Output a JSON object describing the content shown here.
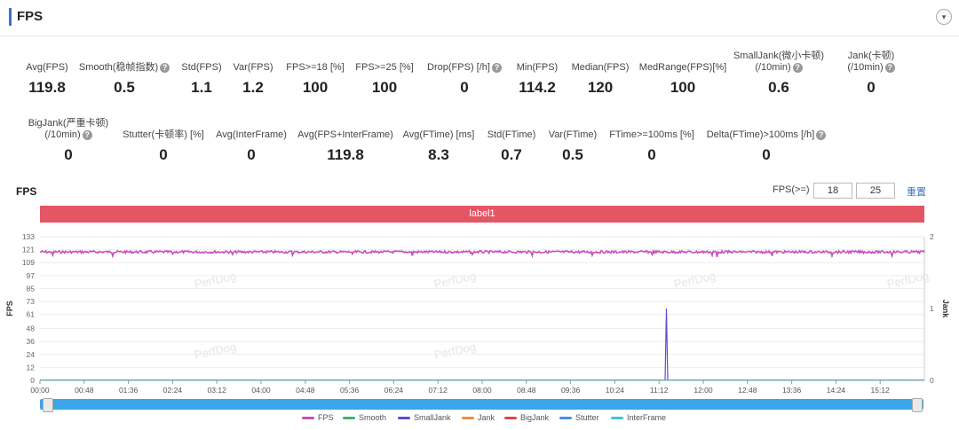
{
  "header": {
    "title": "FPS",
    "collapse_icon": "▾"
  },
  "stats_row1": [
    {
      "label": "Avg(FPS)",
      "value": "119.8",
      "help": false
    },
    {
      "label": "Smooth(稳帧指数)",
      "value": "0.5",
      "help": true
    },
    {
      "label": "Std(FPS)",
      "value": "1.1",
      "help": false
    },
    {
      "label": "Var(FPS)",
      "value": "1.2",
      "help": false
    },
    {
      "label": "FPS>=18 [%]",
      "value": "100",
      "help": false
    },
    {
      "label": "FPS>=25 [%]",
      "value": "100",
      "help": false
    },
    {
      "label": "Drop(FPS) [/h]",
      "value": "0",
      "help": true
    },
    {
      "label": "Min(FPS)",
      "value": "114.2",
      "help": false
    },
    {
      "label": "Median(FPS)",
      "value": "120",
      "help": false
    },
    {
      "label": "MedRange(FPS)[%]",
      "value": "100",
      "help": false
    },
    {
      "label": "SmallJank(微小卡顿)",
      "label2": "(/10min)",
      "value": "0.6",
      "help": true
    },
    {
      "label": "Jank(卡顿)",
      "label2": "(/10min)",
      "value": "0",
      "help": true
    }
  ],
  "stats_row2": [
    {
      "label": "BigJank(严重卡顿)",
      "label2": "(/10min)",
      "value": "0",
      "help": true
    },
    {
      "label": "Stutter(卡顿率) [%]",
      "value": "0",
      "help": false
    },
    {
      "label": "Avg(InterFrame)",
      "value": "0",
      "help": false
    },
    {
      "label": "Avg(FPS+InterFrame)",
      "value": "119.8",
      "help": false
    },
    {
      "label": "Avg(FTime) [ms]",
      "value": "8.3",
      "help": false
    },
    {
      "label": "Std(FTime)",
      "value": "0.7",
      "help": false
    },
    {
      "label": "Var(FTime)",
      "value": "0.5",
      "help": false
    },
    {
      "label": "FTime>=100ms [%]",
      "value": "0",
      "help": false
    },
    {
      "label": "Delta(FTime)>100ms [/h]",
      "value": "0",
      "help": true
    }
  ],
  "section": {
    "title": "FPS",
    "threshold_label": "FPS(>=)",
    "threshold1": "18",
    "threshold2": "25",
    "reset_label": "重置"
  },
  "label_band": "label1",
  "watermark": "PerfDog",
  "chart_data": {
    "type": "line",
    "ylabel": "FPS",
    "y2label": "Jank",
    "y_ticks": [
      0,
      12,
      24,
      36,
      48,
      61,
      73,
      85,
      97,
      109,
      121,
      133
    ],
    "y2_ticks": [
      0,
      1,
      2
    ],
    "ylim": [
      0,
      133
    ],
    "y2lim": [
      0,
      2
    ],
    "x_ticks": [
      "00:00",
      "00:48",
      "01:36",
      "02:24",
      "03:12",
      "04:00",
      "04:48",
      "05:36",
      "06:24",
      "07:12",
      "08:00",
      "08:48",
      "09:36",
      "10:24",
      "11:12",
      "12:00",
      "12:48",
      "13:36",
      "14:24",
      "15:12"
    ],
    "x_range_seconds": [
      0,
      960
    ],
    "series": [
      {
        "name": "FPS",
        "color": "#c54fbf",
        "axis": "left",
        "typical_value": 120,
        "min": 114.2
      },
      {
        "name": "Smooth",
        "color": "#3cb371",
        "axis": "right",
        "value": 0
      },
      {
        "name": "SmallJank",
        "color": "#5a4fcf",
        "axis": "right",
        "spikes": [
          {
            "time": "11:20",
            "value": 1
          }
        ]
      },
      {
        "name": "Jank",
        "color": "#f08c3c",
        "axis": "right",
        "value": 0
      },
      {
        "name": "BigJank",
        "color": "#e04646",
        "axis": "right",
        "value": 0
      },
      {
        "name": "Stutter",
        "color": "#4a90e2",
        "axis": "right",
        "value": 0
      },
      {
        "name": "InterFrame",
        "color": "#3ec6d6",
        "axis": "left",
        "value": 0
      }
    ],
    "legend_position": "bottom"
  }
}
